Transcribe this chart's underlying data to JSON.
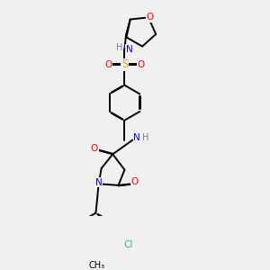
{
  "background_color": "#f0f0f0",
  "atom_colors": {
    "C": "#000000",
    "H": "#708090",
    "N": "#0000FF",
    "O": "#FF0000",
    "S": "#DAA520",
    "Cl": "#3CB371"
  },
  "bond_color": "#000000",
  "bond_width": 1.4,
  "figsize": [
    3.0,
    3.0
  ],
  "dpi": 100
}
